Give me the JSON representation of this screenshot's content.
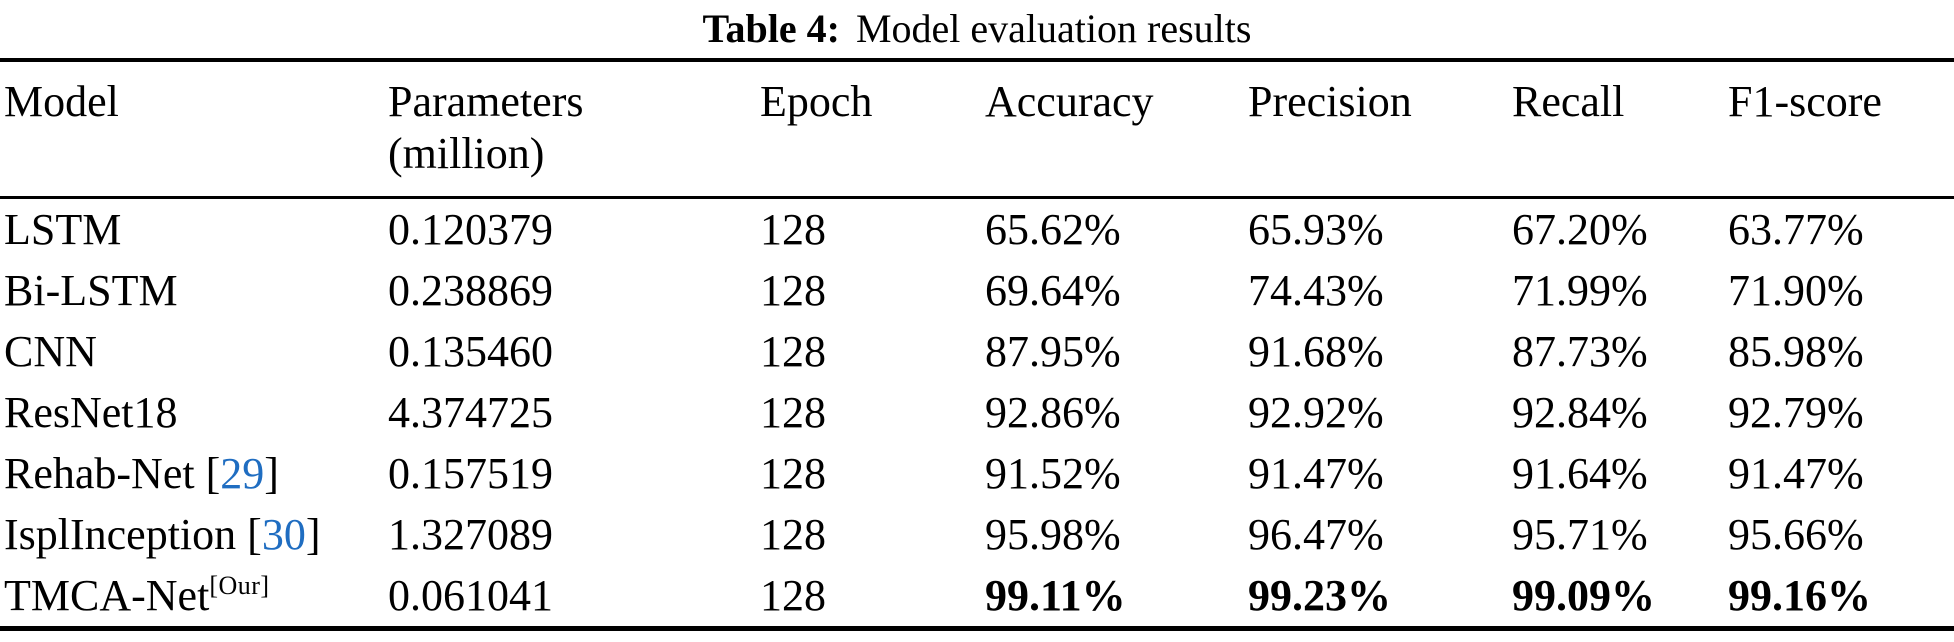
{
  "caption": {
    "label": "Table 4:",
    "text": "Model evaluation results"
  },
  "colors": {
    "citation_link": "#1f6dc1",
    "text": "#000000",
    "background": "#ffffff"
  },
  "table": {
    "columns": [
      {
        "label": "Model"
      },
      {
        "label": "Parameters",
        "sublabel": "(million)"
      },
      {
        "label": "Epoch"
      },
      {
        "label": "Accuracy"
      },
      {
        "label": "Precision"
      },
      {
        "label": "Recall"
      },
      {
        "label": "F1-score"
      }
    ],
    "rows": [
      {
        "model_parts": [
          {
            "text": "LSTM"
          }
        ],
        "parameters": "0.120379",
        "epoch": "128",
        "accuracy": "65.62%",
        "precision": "65.93%",
        "recall": "67.20%",
        "f1_score": "63.77%",
        "metrics_bold": false
      },
      {
        "model_parts": [
          {
            "text": "Bi-LSTM"
          }
        ],
        "parameters": "0.238869",
        "epoch": "128",
        "accuracy": "69.64%",
        "precision": "74.43%",
        "recall": "71.99%",
        "f1_score": "71.90%",
        "metrics_bold": false
      },
      {
        "model_parts": [
          {
            "text": "CNN"
          }
        ],
        "parameters": "0.135460",
        "epoch": "128",
        "accuracy": "87.95%",
        "precision": "91.68%",
        "recall": "87.73%",
        "f1_score": "85.98%",
        "metrics_bold": false
      },
      {
        "model_parts": [
          {
            "text": "ResNet18"
          }
        ],
        "parameters": "4.374725",
        "epoch": "128",
        "accuracy": "92.86%",
        "precision": "92.92%",
        "recall": "92.84%",
        "f1_score": "92.79%",
        "metrics_bold": false
      },
      {
        "model_parts": [
          {
            "text": "Rehab-Net ["
          },
          {
            "text": "29",
            "style": "citation"
          },
          {
            "text": "]"
          }
        ],
        "parameters": "0.157519",
        "epoch": "128",
        "accuracy": "91.52%",
        "precision": "91.47%",
        "recall": "91.64%",
        "f1_score": "91.47%",
        "metrics_bold": false
      },
      {
        "model_parts": [
          {
            "text": "IsplInception ["
          },
          {
            "text": "30",
            "style": "citation"
          },
          {
            "text": "]"
          }
        ],
        "parameters": "1.327089",
        "epoch": "128",
        "accuracy": "95.98%",
        "precision": "96.47%",
        "recall": "95.71%",
        "f1_score": "95.66%",
        "metrics_bold": false
      },
      {
        "model_parts": [
          {
            "text": "TMCA-Net"
          },
          {
            "text": "[Our]",
            "style": "sup"
          }
        ],
        "parameters": "0.061041",
        "epoch": "128",
        "accuracy": "99.11%",
        "precision": "99.23%",
        "recall": "99.09%",
        "f1_score": "99.16%",
        "metrics_bold": true
      }
    ]
  }
}
